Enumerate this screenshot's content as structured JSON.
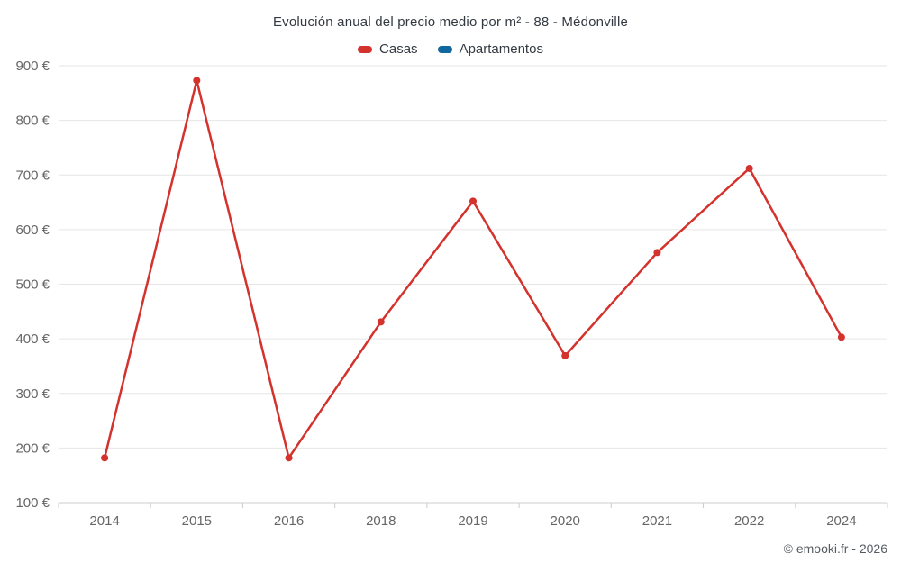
{
  "page": {
    "title": "Evolución anual del precio medio por m² - 88 - Médonville",
    "footer": "© emooki.fr - 2026"
  },
  "legend": [
    {
      "label": "Casas",
      "color": "#d3322d"
    },
    {
      "label": "Apartamentos",
      "color": "#11689f"
    }
  ],
  "chart_data": {
    "type": "line",
    "title": "Evolución anual del precio medio por m² - 88 - Médonville",
    "categories": [
      "2014",
      "2015",
      "2016",
      "2018",
      "2019",
      "2020",
      "2021",
      "2022",
      "2024"
    ],
    "series": [
      {
        "name": "Casas",
        "color": "#d3322d",
        "values": [
          182,
          873,
          182,
          431,
          652,
          369,
          558,
          712,
          403
        ]
      },
      {
        "name": "Apartamentos",
        "color": "#11689f",
        "values": []
      }
    ],
    "xlabel": "",
    "ylabel": "",
    "ylim": [
      100,
      900
    ],
    "ytick_step": 100,
    "ytick_suffix": " €",
    "yticks": [
      100,
      200,
      300,
      400,
      500,
      600,
      700,
      800,
      900
    ],
    "grid": true,
    "legend_position": "top",
    "grid_color": "#e6e6e6",
    "axis_color": "#cccccc",
    "tick_color": "#666666"
  }
}
